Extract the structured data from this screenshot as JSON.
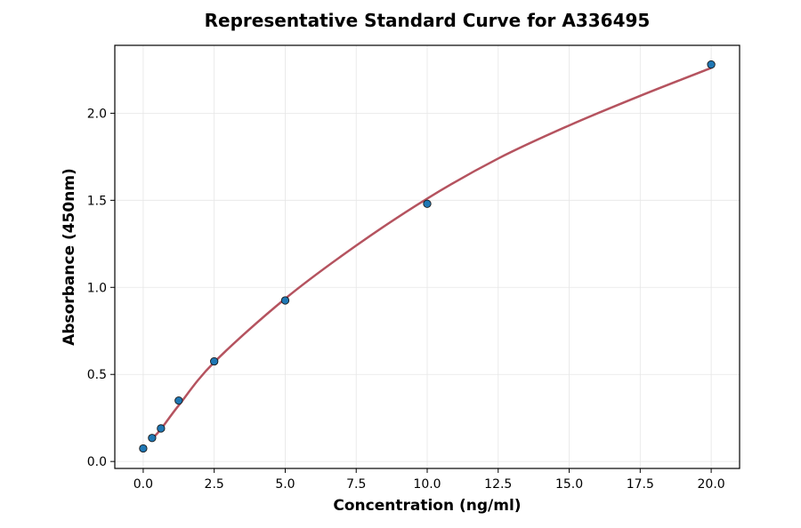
{
  "chart_data": {
    "type": "scatter",
    "title": "Representative Standard Curve for A336495",
    "xlabel": "Concentration (ng/ml)",
    "ylabel": "Absorbance (450nm)",
    "xlim": [
      -1.0,
      21.0
    ],
    "ylim": [
      -0.04,
      2.39
    ],
    "xticks": [
      0.0,
      2.5,
      5.0,
      7.5,
      10.0,
      12.5,
      15.0,
      17.5,
      20.0
    ],
    "xtick_labels": [
      "0.0",
      "2.5",
      "5.0",
      "7.5",
      "10.0",
      "12.5",
      "15.0",
      "17.5",
      "20.0"
    ],
    "yticks": [
      0.0,
      0.5,
      1.0,
      1.5,
      2.0
    ],
    "ytick_labels": [
      "0.0",
      "0.5",
      "1.0",
      "1.5",
      "2.0"
    ],
    "grid": true,
    "series": [
      {
        "kind": "points",
        "x": [
          0.0,
          0.3125,
          0.625,
          1.25,
          2.5,
          5.0,
          10.0,
          20.0
        ],
        "y": [
          0.075,
          0.135,
          0.19,
          0.35,
          0.575,
          0.925,
          1.48,
          2.28
        ],
        "color": "#1f77b4"
      },
      {
        "kind": "fit-curve",
        "x": [
          0.3125,
          0.625,
          1.25,
          2.5,
          5.0,
          7.5,
          10.0,
          12.5,
          15.0,
          17.5,
          20.0
        ],
        "y": [
          0.13,
          0.186,
          0.322,
          0.57,
          0.935,
          1.24,
          1.51,
          1.74,
          1.93,
          2.1,
          2.26
        ],
        "color": "#b5535f"
      }
    ]
  }
}
